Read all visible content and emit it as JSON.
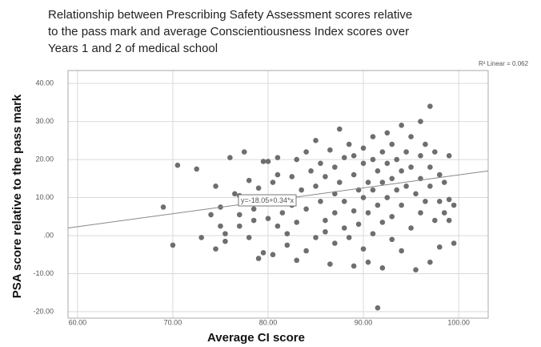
{
  "chart_data": {
    "type": "scatter",
    "title_lines": [
      "Relationship between Prescribing Safety Assessment scores relative",
      "to the pass mark and average Conscientiousness Index scores over",
      "Years 1 and 2 of medical school"
    ],
    "x_label": "Average CI score",
    "y_label": "PSA score relative to the pass mark",
    "r2_label": "R² Linear = 0.062",
    "fit": {
      "label": "y=-18.05+0.34*x",
      "intercept": -18.05,
      "slope": 0.34
    },
    "color": "#6e6e6e",
    "grid": true,
    "xlim": [
      59,
      103.1
    ],
    "ylim": [
      -21.7,
      43.4
    ],
    "xticks": [
      {
        "value": 60,
        "label": "60.00"
      },
      {
        "value": 70,
        "label": "70.00"
      },
      {
        "value": 80,
        "label": "80.00"
      },
      {
        "value": 90,
        "label": "90.00"
      },
      {
        "value": 100,
        "label": "100.00"
      }
    ],
    "yticks": [
      {
        "value": 40,
        "label": "40.00"
      },
      {
        "value": 30,
        "label": "30.00"
      },
      {
        "value": 20,
        "label": "20.00"
      },
      {
        "value": 10,
        "label": "10.00"
      },
      {
        "value": 0,
        "label": ".00"
      },
      {
        "value": -10,
        "label": "-10.00"
      },
      {
        "value": -20,
        "label": "-20.00"
      }
    ],
    "x": [
      69,
      70,
      70.5,
      72.5,
      73,
      74,
      74.5,
      74.5,
      75,
      75,
      75.5,
      75.5,
      76,
      76.5,
      77,
      77,
      77,
      77.5,
      78,
      78,
      78.5,
      78.5,
      79,
      79,
      79.5,
      79.5,
      80,
      80,
      80,
      80.5,
      80.5,
      81,
      81,
      81,
      81.5,
      82,
      82,
      82,
      82.5,
      82.5,
      83,
      83,
      83,
      83.5,
      84,
      84,
      84,
      84.5,
      85,
      85,
      85,
      85.5,
      85.5,
      86,
      86,
      86,
      86.5,
      86.5,
      87,
      87,
      87,
      87,
      87.5,
      87.5,
      88,
      88,
      88,
      88.5,
      88.5,
      89,
      89,
      89,
      89,
      89.5,
      89.5,
      90,
      90,
      90,
      90,
      90.5,
      90.5,
      90.5,
      91,
      91,
      91,
      91,
      91.5,
      91.5,
      91.5,
      92,
      92,
      92,
      92,
      92.5,
      92.5,
      92.5,
      93,
      93,
      93,
      93,
      93.5,
      93.5,
      94,
      94,
      94,
      94,
      94.5,
      94.5,
      95,
      95,
      95,
      95.5,
      95.5,
      96,
      96,
      96,
      96,
      96.5,
      96.5,
      97,
      97,
      97,
      97,
      97.5,
      97.5,
      98,
      98,
      98,
      98.5,
      98.5,
      99,
      99,
      99,
      99.5,
      99.5
    ],
    "y": [
      7.5,
      -2.5,
      18.5,
      17.5,
      -0.5,
      5.5,
      -3.5,
      13,
      7.5,
      2.5,
      0.5,
      -1.5,
      20.5,
      11,
      10.5,
      5.5,
      2.5,
      22,
      -0.5,
      14.5,
      4,
      7,
      -6,
      12.5,
      19.5,
      -4.5,
      19.5,
      10,
      4.5,
      -5,
      14,
      16,
      20.5,
      2.5,
      6,
      -2.5,
      10,
      0.5,
      15.5,
      8,
      -6.5,
      3.5,
      20,
      12,
      22,
      -4,
      7,
      17,
      13,
      -0.5,
      25,
      9,
      19,
      4,
      1,
      15.5,
      -7.5,
      22.5,
      11,
      6,
      18,
      -2,
      28,
      14,
      2,
      20.5,
      9,
      24,
      -0.5,
      16,
      6.5,
      -8,
      21,
      12,
      3,
      19,
      10,
      -3.5,
      23,
      14,
      6,
      -7,
      20,
      26,
      12,
      0.5,
      -19,
      17,
      8,
      22,
      14,
      3.5,
      -8.5,
      27,
      19,
      10,
      15,
      -1,
      5,
      24,
      12,
      20,
      29,
      17,
      8,
      -4,
      22,
      13,
      18,
      2,
      26,
      11,
      -9,
      21,
      15,
      6,
      30,
      24,
      9,
      34,
      18,
      -7,
      13,
      22,
      4,
      16,
      9,
      -3,
      14,
      6,
      21,
      9.5,
      4,
      -2,
      8
    ]
  }
}
